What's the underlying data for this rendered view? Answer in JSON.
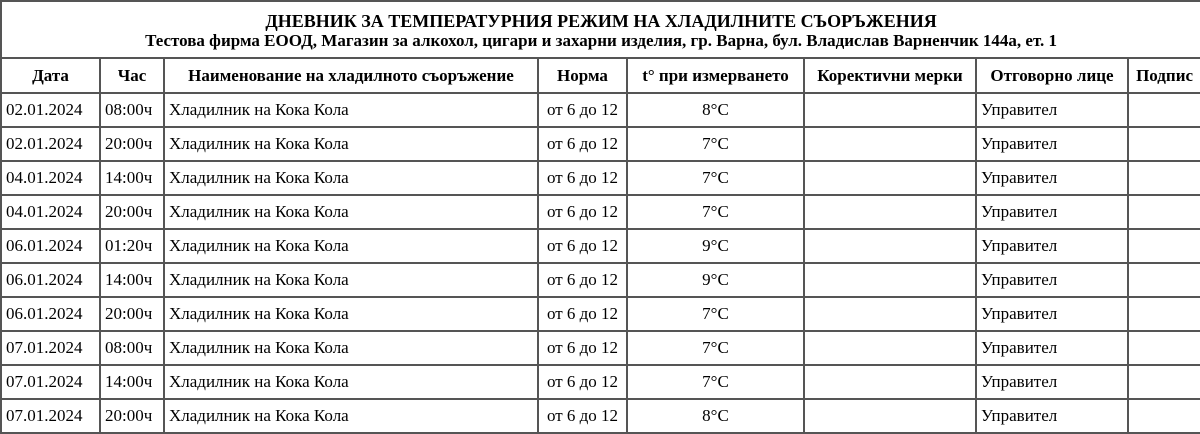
{
  "title": "ДНЕВНИК ЗА ТЕМПЕРАТУРНИЯ РЕЖИМ НА ХЛАДИЛНИТЕ СЪОРЪЖЕНИЯ",
  "subtitle": "Тестова фирма ЕООД, Магазин за алкохол, цигари и захарни изделия, гр. Варна, бул. Владислав Варненчик 144а, ет. 1",
  "columns": [
    "Дата",
    "Час",
    "Наименование на хладилното съоръжение",
    "Норма",
    "t° при измерването",
    "Коректívни мерки",
    "Отговорно лице",
    "Подпис"
  ],
  "rows": [
    {
      "date": "02.01.2024",
      "time": "08:00ч",
      "name": "Хладилник на Кока Кола",
      "norm": "от 6 до 12",
      "temp": "8°C",
      "measures": "",
      "person": "Управител",
      "signature": ""
    },
    {
      "date": "02.01.2024",
      "time": "20:00ч",
      "name": "Хладилник на Кока Кола",
      "norm": "от 6 до 12",
      "temp": "7°C",
      "measures": "",
      "person": "Управител",
      "signature": ""
    },
    {
      "date": "04.01.2024",
      "time": "14:00ч",
      "name": "Хладилник на Кока Кола",
      "norm": "от 6 до 12",
      "temp": "7°C",
      "measures": "",
      "person": "Управител",
      "signature": ""
    },
    {
      "date": "04.01.2024",
      "time": "20:00ч",
      "name": "Хладилник на Кока Кола",
      "norm": "от 6 до 12",
      "temp": "7°C",
      "measures": "",
      "person": "Управител",
      "signature": ""
    },
    {
      "date": "06.01.2024",
      "time": "01:20ч",
      "name": "Хладилник на Кока Кола",
      "norm": "от 6 до 12",
      "temp": "9°C",
      "measures": "",
      "person": "Управител",
      "signature": ""
    },
    {
      "date": "06.01.2024",
      "time": "14:00ч",
      "name": "Хладилник на Кока Кола",
      "norm": "от 6 до 12",
      "temp": "9°C",
      "measures": "",
      "person": "Управител",
      "signature": ""
    },
    {
      "date": "06.01.2024",
      "time": "20:00ч",
      "name": "Хладилник на Кока Кола",
      "norm": "от 6 до 12",
      "temp": "7°C",
      "measures": "",
      "person": "Управител",
      "signature": ""
    },
    {
      "date": "07.01.2024",
      "time": "08:00ч",
      "name": "Хладилник на Кока Кола",
      "norm": "от 6 до 12",
      "temp": "7°C",
      "measures": "",
      "person": "Управител",
      "signature": ""
    },
    {
      "date": "07.01.2024",
      "time": "14:00ч",
      "name": "Хладилник на Кока Кола",
      "norm": "от 6 до 12",
      "temp": "7°C",
      "measures": "",
      "person": "Управител",
      "signature": ""
    },
    {
      "date": "07.01.2024",
      "time": "20:00ч",
      "name": "Хладилник на Кока Кола",
      "norm": "от 6 до 12",
      "temp": "8°C",
      "measures": "",
      "person": "Управител",
      "signature": ""
    }
  ]
}
